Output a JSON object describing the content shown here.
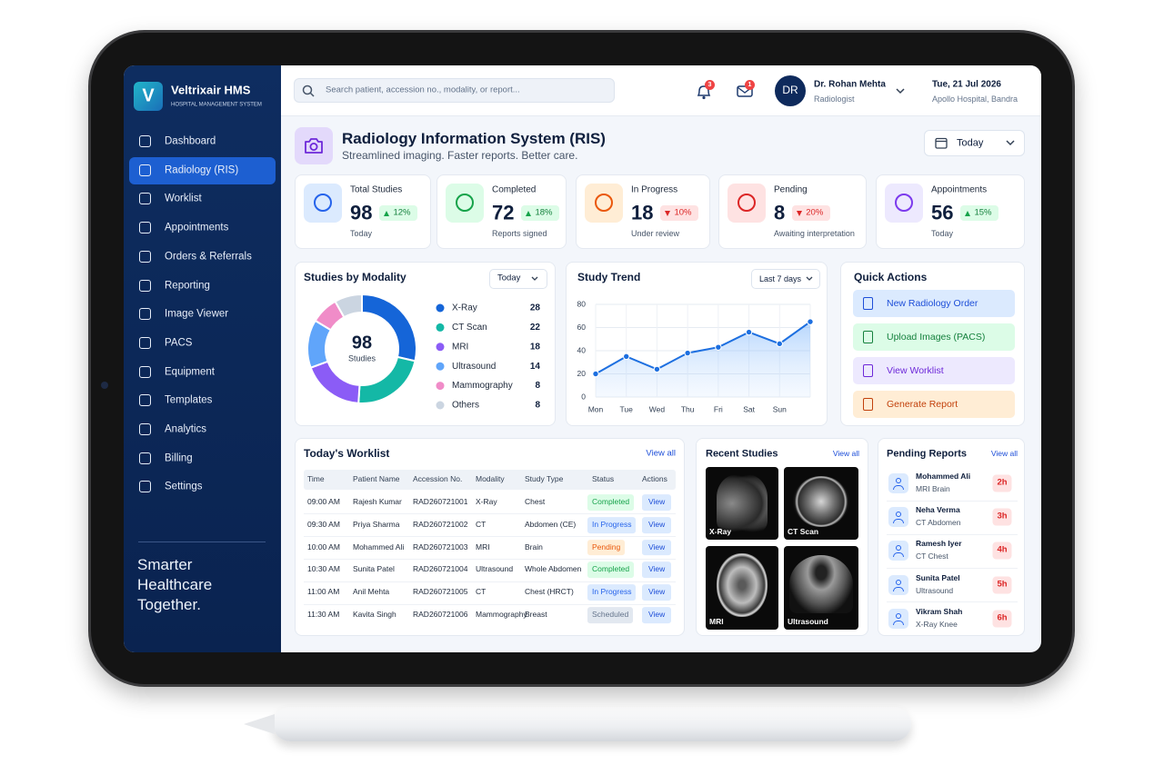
{
  "brand": {
    "name": "Veltrixair HMS",
    "tagline": "HOSPITAL MANAGEMENT SYSTEM",
    "logo": "V"
  },
  "nav": {
    "items": [
      "Dashboard",
      "Radiology (RIS)",
      "Worklist",
      "Appointments",
      "Orders & Referrals",
      "Reporting",
      "Image Viewer",
      "PACS",
      "Equipment",
      "Templates",
      "Analytics",
      "Billing",
      "Settings"
    ],
    "active": 1
  },
  "slogan": [
    "Smarter",
    "Healthcare",
    "Together."
  ],
  "search_placeholder": "Search patient, accession no., modality, or report...",
  "notifications": {
    "alerts": "3",
    "messages": "1"
  },
  "user": {
    "initials": "DR",
    "name": "Dr. Rohan Mehta",
    "role": "Radiologist"
  },
  "date": "Tue, 21 Jul 2026",
  "location": "Apollo Hospital, Bandra",
  "page": {
    "title": "Radiology Information System (RIS)",
    "subtitle": "Streamlined imaging. Faster reports. Better care.",
    "filter": "Today"
  },
  "stats": [
    {
      "label": "Total Studies",
      "value": "98",
      "change": "12%",
      "trend": "up",
      "note": "Today",
      "color": "#2563eb",
      "bg": "#dbeafe"
    },
    {
      "label": "Completed",
      "value": "72",
      "change": "18%",
      "trend": "up",
      "note": "Reports signed",
      "color": "#16a34a",
      "bg": "#dcfce7"
    },
    {
      "label": "In Progress",
      "value": "18",
      "change": "10%",
      "trend": "down",
      "note": "Under review",
      "color": "#ea580c",
      "bg": "#ffedd5"
    },
    {
      "label": "Pending",
      "value": "8",
      "change": "20%",
      "trend": "down",
      "note": "Awaiting interpretation",
      "color": "#dc2626",
      "bg": "#fee2e2"
    },
    {
      "label": "Appointments",
      "value": "56",
      "change": "15%",
      "trend": "up",
      "note": "Today",
      "color": "#7c3aed",
      "bg": "#ede9fe"
    }
  ],
  "modality_chart": {
    "type": "donut",
    "title": "Studies by Modality",
    "filter": "Today",
    "total": "98",
    "total_label": "Studies",
    "categories": [
      "X-Ray",
      "CT Scan",
      "MRI",
      "Ultrasound",
      "Mammography",
      "Others"
    ],
    "values": [
      28,
      22,
      18,
      14,
      8,
      8
    ],
    "colors": [
      "#1565d8",
      "#14b8a6",
      "#8b5cf6",
      "#60a5fa",
      "#f08cc8",
      "#cbd5e1"
    ]
  },
  "trend_chart": {
    "type": "line",
    "title": "Study Trend",
    "filter": "Last 7 days",
    "x": [
      "Mon",
      "Tue",
      "Wed",
      "Thu",
      "Fri",
      "Sat",
      "Sun",
      null
    ],
    "values": [
      20,
      35,
      24,
      38,
      43,
      56,
      46,
      65
    ],
    "ylim": [
      0,
      80
    ],
    "yticks": [
      0,
      20,
      40,
      60,
      80
    ],
    "grid": true,
    "color": "#1d6fe0"
  },
  "quick_actions": {
    "title": "Quick Actions",
    "items": [
      {
        "label": "New Radiology Order",
        "color": "#1d4ed8",
        "bg": "#dbeafe"
      },
      {
        "label": "Upload Images (PACS)",
        "color": "#15803d",
        "bg": "#dcfce7"
      },
      {
        "label": "View Worklist",
        "color": "#6d28d9",
        "bg": "#ede9fe"
      },
      {
        "label": "Generate Report",
        "color": "#c2410c",
        "bg": "#ffedd5"
      }
    ]
  },
  "worklist": {
    "title": "Today's Worklist",
    "link": "View all",
    "columns": [
      "Time",
      "Patient Name",
      "Accession No.",
      "Modality",
      "Study Type",
      "Status",
      "Actions"
    ],
    "rows": [
      [
        "09:00 AM",
        "Rajesh Kumar",
        "RAD260721001",
        "X-Ray",
        "Chest",
        "Completed",
        "View"
      ],
      [
        "09:30 AM",
        "Priya Sharma",
        "RAD260721002",
        "CT",
        "Abdomen (CE)",
        "In Progress",
        "View"
      ],
      [
        "10:00 AM",
        "Mohammed Ali",
        "RAD260721003",
        "MRI",
        "Brain",
        "Pending",
        "View"
      ],
      [
        "10:30 AM",
        "Sunita Patel",
        "RAD260721004",
        "Ultrasound",
        "Whole Abdomen",
        "Completed",
        "View"
      ],
      [
        "11:00 AM",
        "Anil Mehta",
        "RAD260721005",
        "CT",
        "Chest (HRCT)",
        "In Progress",
        "View"
      ],
      [
        "11:30 AM",
        "Kavita Singh",
        "RAD260721006",
        "Mammography",
        "Breast",
        "Scheduled",
        "View"
      ]
    ],
    "status_colors": [
      "#16a34a",
      "#2563eb",
      "#ea580c",
      "#16a34a",
      "#2563eb",
      "#64748b"
    ],
    "status_bgs": [
      "#dcfce7",
      "#dbeafe",
      "#ffedd5",
      "#dcfce7",
      "#dbeafe",
      "#e2e8f0"
    ]
  },
  "recent_studies": {
    "title": "Recent Studies",
    "link": "View all",
    "items": [
      "X-Ray",
      "CT Scan",
      "MRI",
      "Ultrasound"
    ]
  },
  "pending_reports": {
    "title": "Pending Reports",
    "link": "View all",
    "items": [
      {
        "name": "Mohammed Ali",
        "study": "MRI Brain",
        "age": "2h"
      },
      {
        "name": "Neha Verma",
        "study": "CT Abdomen",
        "age": "3h"
      },
      {
        "name": "Ramesh Iyer",
        "study": "CT Chest",
        "age": "4h"
      },
      {
        "name": "Sunita Patel",
        "study": "Ultrasound",
        "age": "5h"
      },
      {
        "name": "Vikram Shah",
        "study": "X-Ray Knee",
        "age": "6h"
      }
    ]
  }
}
